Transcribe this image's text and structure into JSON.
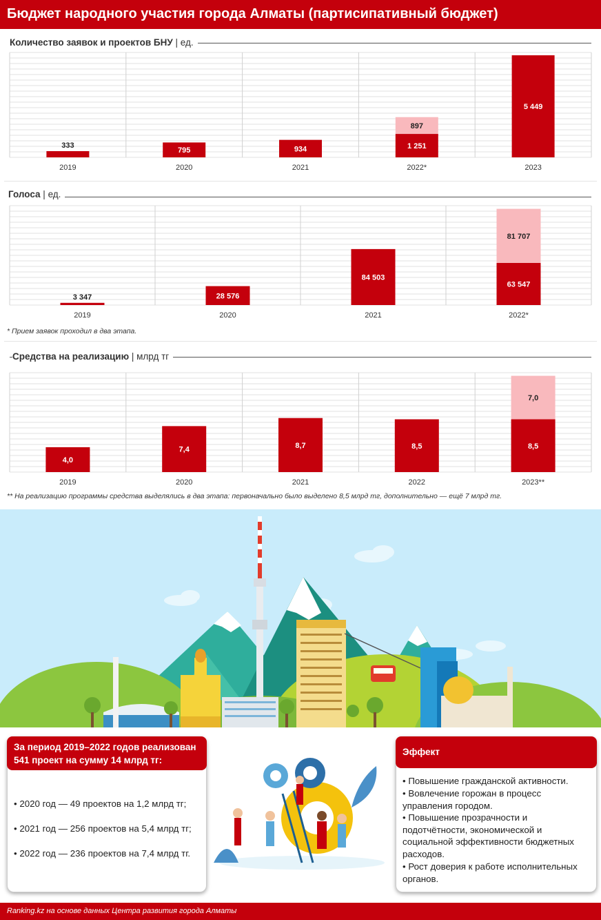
{
  "title": "Бюджет народного участия города Алматы (партисипативный бюджет)",
  "colors": {
    "primary": "#c4000c",
    "secondary": "#f9b9bd",
    "grid": "#dcdcdc"
  },
  "chart_data": [
    {
      "type": "bar",
      "stacked": true,
      "title": "Количество заявок и проектов БНУ",
      "unit": "ед.",
      "categories": [
        "2019",
        "2020",
        "2021",
        "2022*",
        "2023"
      ],
      "series": [
        {
          "color": "#c4000c",
          "values": [
            333,
            795,
            934,
            1251,
            5449
          ],
          "labels": [
            "333",
            "795",
            "934",
            "1 251",
            "5 449"
          ]
        },
        {
          "color": "#f9b9bd",
          "values": [
            null,
            null,
            null,
            897,
            null
          ],
          "labels": [
            "",
            "",
            "",
            "897",
            ""
          ]
        }
      ],
      "grid": true
    },
    {
      "type": "bar",
      "stacked": true,
      "title": "Голоса",
      "unit": "ед.",
      "categories": [
        "2019",
        "2020",
        "2021",
        "2022*"
      ],
      "series": [
        {
          "color": "#c4000c",
          "values": [
            3347,
            28576,
            84503,
            63547
          ],
          "labels": [
            "3 347",
            "28 576",
            "84 503",
            "63 547"
          ]
        },
        {
          "color": "#f9b9bd",
          "values": [
            null,
            null,
            null,
            81707
          ],
          "labels": [
            "",
            "",
            "",
            "81 707"
          ]
        }
      ],
      "grid": true
    },
    {
      "type": "bar",
      "stacked": true,
      "title": "Средства на реализацию",
      "unit": "млрд тг",
      "categories": [
        "2019",
        "2020",
        "2021",
        "2022",
        "2023**"
      ],
      "series": [
        {
          "color": "#c4000c",
          "values": [
            4.0,
            7.4,
            8.7,
            8.5,
            8.5
          ],
          "labels": [
            "4,0",
            "7,4",
            "8,7",
            "8,5",
            "8,5"
          ]
        },
        {
          "color": "#f9b9bd",
          "values": [
            null,
            null,
            null,
            null,
            7.0
          ],
          "labels": [
            "",
            "",
            "",
            "",
            "7,0"
          ]
        }
      ],
      "grid": true
    }
  ],
  "notes": {
    "note1": "* Прием заявок проходил в два этапа.",
    "note2": "** На реализацию программы средства выделялись в два этапа: первоначально было выделено 8,5 млрд тг, дополнительно — ещё 7 млрд тг."
  },
  "summary": {
    "heading": "За период 2019–2022 годов реализован 541 проект на сумму 14 млрд тг:",
    "heading_line1": "За период 2019–2022 годов реализован",
    "heading_line2": "541 проект на сумму 14 млрд тг:",
    "items": [
      "• 2020 год — 49 проектов на 1,2 млрд тг;",
      "• 2021 год — 256 проектов на 5,4 млрд тг;",
      "• 2022 год — 236 проектов на 7,4 млрд тг."
    ]
  },
  "effect": {
    "heading": "Эффект",
    "items": [
      "• Повышение гражданской активности.",
      "• Вовлечение горожан в процесс управления городом.",
      "• Повышение прозрачности и подотчётности, экономической и социальной эффективности бюджетных расходов.",
      "• Рост доверия к работе исполнительных органов."
    ]
  },
  "footer": "Ranking.kz на основе данных Центра развития города Алматы"
}
